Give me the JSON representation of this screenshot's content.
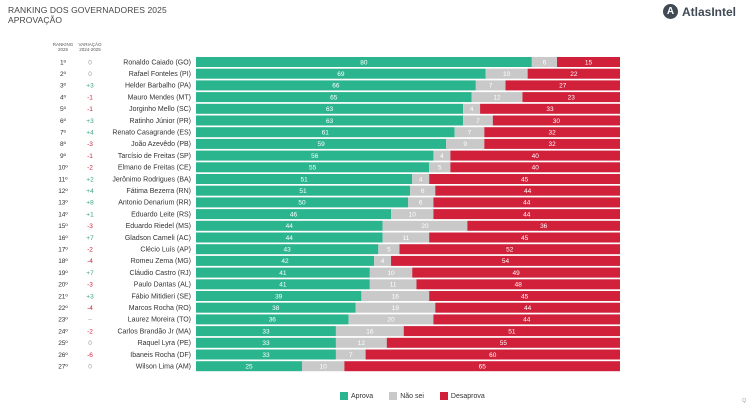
{
  "header": {
    "title_line1": "RANKING DOS GOVERNADORES 2025",
    "title_line2": "APROVAÇÃO",
    "logo_text": "AtlasIntel",
    "col_rank_line1": "RANKING",
    "col_rank_line2": "2025",
    "col_var_line1": "VARIAÇÃO",
    "col_var_line2": "2024-2025"
  },
  "legend": {
    "aprova": "Aprova",
    "nao_sei": "Não sei",
    "desaprova": "Desaprova"
  },
  "corner_mark": "Q",
  "colors": {
    "aprova": "#2bb58e",
    "nao_sei": "#c9c9c9",
    "desaprova": "#d0203a",
    "var_positive": "#3aa57a",
    "var_negative": "#d0203a",
    "var_neutral": "#999999"
  },
  "chart_data": {
    "type": "bar",
    "stacked": true,
    "orientation": "horizontal",
    "xlim": [
      0,
      100
    ],
    "series_names": [
      "Aprova",
      "Não sei",
      "Desaprova"
    ],
    "rows": [
      {
        "rank": "1º",
        "var": "0",
        "name": "Ronaldo Caiado (GO)",
        "aprova": 80,
        "nao_sei": 6,
        "desaprova": 15
      },
      {
        "rank": "2º",
        "var": "0",
        "name": "Rafael Fonteles (PI)",
        "aprova": 69,
        "nao_sei": 10,
        "desaprova": 22
      },
      {
        "rank": "3º",
        "var": "+3",
        "name": "Helder Barbalho (PA)",
        "aprova": 66,
        "nao_sei": 7,
        "desaprova": 27
      },
      {
        "rank": "4º",
        "var": "-1",
        "name": "Mauro Mendes (MT)",
        "aprova": 65,
        "nao_sei": 12,
        "desaprova": 23
      },
      {
        "rank": "5º",
        "var": "-1",
        "name": "Jorginho Mello (SC)",
        "aprova": 63,
        "nao_sei": 4,
        "desaprova": 33
      },
      {
        "rank": "6º",
        "var": "+3",
        "name": "Ratinho Júnior (PR)",
        "aprova": 63,
        "nao_sei": 7,
        "desaprova": 30
      },
      {
        "rank": "7º",
        "var": "+4",
        "name": "Renato Casagrande (ES)",
        "aprova": 61,
        "nao_sei": 7,
        "desaprova": 32
      },
      {
        "rank": "8º",
        "var": "-3",
        "name": "João Azevêdo (PB)",
        "aprova": 59,
        "nao_sei": 9,
        "desaprova": 32
      },
      {
        "rank": "9º",
        "var": "-1",
        "name": "Tarcísio de Freitas (SP)",
        "aprova": 56,
        "nao_sei": 4,
        "desaprova": 40
      },
      {
        "rank": "10º",
        "var": "-2",
        "name": "Elmano de Freitas (CE)",
        "aprova": 55,
        "nao_sei": 5,
        "desaprova": 40
      },
      {
        "rank": "11º",
        "var": "+2",
        "name": "Jerônimo Rodrigues (BA)",
        "aprova": 51,
        "nao_sei": 4,
        "desaprova": 45
      },
      {
        "rank": "12º",
        "var": "+4",
        "name": "Fátima Bezerra (RN)",
        "aprova": 51,
        "nao_sei": 6,
        "desaprova": 44
      },
      {
        "rank": "13º",
        "var": "+8",
        "name": "Antonio Denarium (RR)",
        "aprova": 50,
        "nao_sei": 6,
        "desaprova": 44
      },
      {
        "rank": "14º",
        "var": "+1",
        "name": "Eduardo Leite (RS)",
        "aprova": 46,
        "nao_sei": 10,
        "desaprova": 44
      },
      {
        "rank": "15º",
        "var": "-3",
        "name": "Eduardo Riedel (MS)",
        "aprova": 44,
        "nao_sei": 20,
        "desaprova": 36
      },
      {
        "rank": "16º",
        "var": "+7",
        "name": "Gladson Cameli (AC)",
        "aprova": 44,
        "nao_sei": 11,
        "desaprova": 45
      },
      {
        "rank": "17º",
        "var": "-2",
        "name": "Clécio Luís (AP)",
        "aprova": 43,
        "nao_sei": 5,
        "desaprova": 52
      },
      {
        "rank": "18º",
        "var": "-4",
        "name": "Romeu Zema (MG)",
        "aprova": 42,
        "nao_sei": 4,
        "desaprova": 54
      },
      {
        "rank": "19º",
        "var": "+7",
        "name": "Cláudio Castro (RJ)",
        "aprova": 41,
        "nao_sei": 10,
        "desaprova": 49
      },
      {
        "rank": "20º",
        "var": "-3",
        "name": "Paulo Dantas (AL)",
        "aprova": 41,
        "nao_sei": 11,
        "desaprova": 48
      },
      {
        "rank": "21º",
        "var": "+3",
        "name": "Fábio Mitidieri (SE)",
        "aprova": 39,
        "nao_sei": 16,
        "desaprova": 45
      },
      {
        "rank": "22º",
        "var": "-4",
        "name": "Marcos Rocha (RO)",
        "aprova": 38,
        "nao_sei": 19,
        "desaprova": 44
      },
      {
        "rank": "23º",
        "var": "–",
        "name": "Laurez Moreira (TO)",
        "aprova": 36,
        "nao_sei": 20,
        "desaprova": 44
      },
      {
        "rank": "24º",
        "var": "-2",
        "name": "Carlos Brandão Jr (MA)",
        "aprova": 33,
        "nao_sei": 16,
        "desaprova": 51
      },
      {
        "rank": "25º",
        "var": "0",
        "name": "Raquel Lyra (PE)",
        "aprova": 33,
        "nao_sei": 12,
        "desaprova": 55
      },
      {
        "rank": "26º",
        "var": "-6",
        "name": "Ibaneis Rocha (DF)",
        "aprova": 33,
        "nao_sei": 7,
        "desaprova": 60
      },
      {
        "rank": "27º",
        "var": "0",
        "name": "Wilson Lima (AM)",
        "aprova": 25,
        "nao_sei": 10,
        "desaprova": 65
      }
    ]
  }
}
